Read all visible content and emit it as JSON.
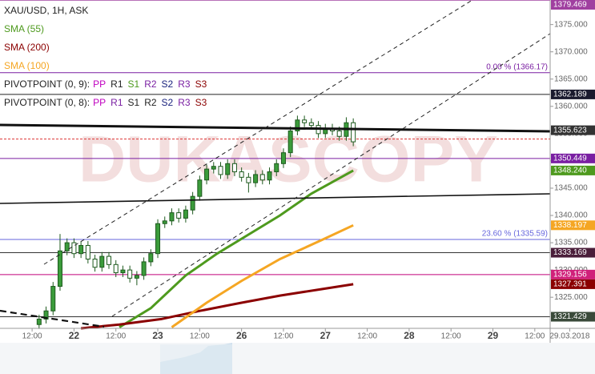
{
  "chart_data": {
    "type": "candlestick",
    "title": "XAU/USD, 1H, ASK",
    "watermark": "DUKASCOPY",
    "xlim": [
      -9.2,
      148.4
    ],
    "ylim": [
      1319.3,
      1379.5
    ],
    "yticks": [
      {
        "value": 1325,
        "label": "1325.000"
      },
      {
        "value": 1330,
        "label": "1330.000"
      },
      {
        "value": 1335,
        "label": "1335.000"
      },
      {
        "value": 1340,
        "label": "1340.000"
      },
      {
        "value": 1345,
        "label": "1345.000"
      },
      {
        "value": 1350,
        "label": "1350.000"
      },
      {
        "value": 1355,
        "label": "1355.000"
      },
      {
        "value": 1360,
        "label": "1360.000"
      },
      {
        "value": 1365,
        "label": "1365.000"
      },
      {
        "value": 1370,
        "label": "1370.000"
      },
      {
        "value": 1375,
        "label": "1375.000"
      }
    ],
    "xticks": [
      {
        "value": 0,
        "label": "12:00"
      },
      {
        "value": 12,
        "label": "22"
      },
      {
        "value": 24,
        "label": "12:00"
      },
      {
        "value": 36,
        "label": "23"
      },
      {
        "value": 48,
        "label": "12:00"
      },
      {
        "value": 60,
        "label": "26"
      },
      {
        "value": 72,
        "label": "12:00"
      },
      {
        "value": 84,
        "label": "27"
      },
      {
        "value": 96,
        "label": "12:00"
      },
      {
        "value": 108,
        "label": "28"
      },
      {
        "value": 120,
        "label": "12:00"
      },
      {
        "value": 132,
        "label": "29"
      },
      {
        "value": 144,
        "label": "12:00"
      },
      {
        "value": 154,
        "label": "29.03.2018"
      }
    ],
    "up_color": "#3b9c3b",
    "down_color": "#ffffff",
    "candles": {
      "x": [
        2,
        4,
        6,
        8,
        10,
        12,
        14,
        16,
        18,
        20,
        22,
        24,
        26,
        28,
        30,
        32,
        34,
        36,
        38,
        40,
        42,
        44,
        46,
        48,
        50,
        52,
        54,
        56,
        58,
        60,
        62,
        64,
        66,
        68,
        70,
        72,
        74,
        76,
        78,
        80,
        82,
        84,
        86,
        88,
        90,
        92
      ],
      "open": [
        1320.0,
        1321.0,
        1322.5,
        1327.0,
        1333.5,
        1335.0,
        1333.0,
        1334.5,
        1332.0,
        1330.5,
        1332.5,
        1331.0,
        1329.5,
        1330.0,
        1328.5,
        1329.0,
        1331.5,
        1333.0,
        1338.5,
        1339.0,
        1340.5,
        1339.5,
        1341.0,
        1343.5,
        1346.5,
        1348.5,
        1349.0,
        1347.5,
        1349.5,
        1348.0,
        1347.0,
        1346.0,
        1347.5,
        1346.5,
        1348.0,
        1349.5,
        1351.5,
        1355.5,
        1357.5,
        1357.0,
        1356.5,
        1355.0,
        1356.0,
        1355.5,
        1354.5,
        1357.0
      ],
      "high": [
        1321.8,
        1323.3,
        1327.8,
        1336.6,
        1335.8,
        1335.8,
        1335.3,
        1335.3,
        1332.8,
        1333.3,
        1333.3,
        1331.8,
        1330.8,
        1330.8,
        1329.8,
        1332.3,
        1333.8,
        1339.3,
        1339.8,
        1341.3,
        1341.3,
        1341.8,
        1344.3,
        1347.3,
        1349.3,
        1349.8,
        1349.8,
        1350.3,
        1350.3,
        1348.8,
        1347.8,
        1348.3,
        1348.3,
        1348.8,
        1350.3,
        1352.3,
        1356.3,
        1358.3,
        1358.3,
        1357.8,
        1357.3,
        1356.8,
        1356.8,
        1356.3,
        1358.0,
        1357.8
      ],
      "low": [
        1319.2,
        1320.2,
        1321.7,
        1326.2,
        1332.7,
        1332.2,
        1332.2,
        1331.2,
        1329.7,
        1329.7,
        1330.2,
        1328.7,
        1328.7,
        1327.7,
        1327.2,
        1328.2,
        1330.7,
        1332.2,
        1337.7,
        1338.2,
        1338.7,
        1338.7,
        1340.2,
        1342.7,
        1345.7,
        1347.7,
        1346.7,
        1346.7,
        1347.2,
        1346.2,
        1344.2,
        1345.2,
        1345.7,
        1345.7,
        1347.2,
        1348.7,
        1350.7,
        1354.7,
        1356.2,
        1355.7,
        1354.2,
        1354.2,
        1354.7,
        1353.7,
        1353.7,
        1352.7
      ],
      "close": [
        1321.0,
        1322.5,
        1327.0,
        1333.5,
        1335.0,
        1333.0,
        1334.5,
        1332.0,
        1330.5,
        1332.5,
        1331.0,
        1329.5,
        1330.0,
        1328.5,
        1329.0,
        1331.5,
        1333.0,
        1338.5,
        1339.0,
        1340.5,
        1339.5,
        1341.0,
        1343.5,
        1346.5,
        1348.5,
        1349.0,
        1347.5,
        1349.5,
        1348.0,
        1347.0,
        1346.0,
        1347.5,
        1346.5,
        1348.0,
        1349.5,
        1351.5,
        1355.5,
        1357.5,
        1357.0,
        1356.5,
        1355.0,
        1356.0,
        1355.5,
        1354.5,
        1357.0,
        1353.5
      ]
    },
    "series": [
      {
        "name": "SMA (55)",
        "color": "#4e9a1e",
        "x": [
          25,
          34,
          44,
          53,
          62,
          71,
          80,
          92
        ],
        "values": [
          1319.5,
          1323,
          1329,
          1333,
          1336.5,
          1340,
          1344,
          1348.24
        ]
      },
      {
        "name": "SMA (200)",
        "color": "#8b0000",
        "x": [
          14,
          25,
          37,
          48,
          60,
          71,
          83,
          92
        ],
        "values": [
          1319.3,
          1320,
          1321,
          1322.5,
          1324,
          1325.3,
          1326.5,
          1327.391
        ]
      },
      {
        "name": "SMA (100)",
        "color": "#f5a623",
        "x": [
          40,
          50,
          60,
          71,
          83,
          92
        ],
        "values": [
          1319.5,
          1324,
          1328,
          1332,
          1335.5,
          1338.197
        ]
      }
    ],
    "pivot_legends": [
      {
        "name": "PIVOTPOINT (0, 9):",
        "items": [
          {
            "label": "PP",
            "color": "#c000c0"
          },
          {
            "label": "R1",
            "color": "#222"
          },
          {
            "label": "S1",
            "color": "#4e9a1e"
          },
          {
            "label": "R2",
            "color": "#7a1fa2"
          },
          {
            "label": "S2",
            "color": "#1a237e"
          },
          {
            "label": "R3",
            "color": "#7a1fa2"
          },
          {
            "label": "S3",
            "color": "#8b0000"
          }
        ]
      },
      {
        "name": "PIVOTPOINT (0, 8):",
        "items": [
          {
            "label": "PP",
            "color": "#c000c0"
          },
          {
            "label": "R1",
            "color": "#7a1fa2"
          },
          {
            "label": "S1",
            "color": "#222"
          },
          {
            "label": "R2",
            "color": "#222"
          },
          {
            "label": "S2",
            "color": "#1a237e"
          },
          {
            "label": "R3",
            "color": "#7a1fa2"
          },
          {
            "label": "S3",
            "color": "#8b0000"
          }
        ]
      }
    ],
    "levels": [
      {
        "value": 1379.469,
        "color": "#a040a0"
      },
      {
        "value": 1366.17,
        "color": "#7a1fa2",
        "label": "0.00 % (1366.17)"
      },
      {
        "value": 1362.189,
        "color": "#222"
      },
      {
        "value": 1354.0,
        "color": "#d33",
        "dashed": true
      },
      {
        "value": 1350.449,
        "color": "#7a1fa2"
      },
      {
        "value": 1335.59,
        "color": "#6666dd",
        "label": "23.60 % (1335.59)"
      },
      {
        "value": 1333.169,
        "color": "#333"
      },
      {
        "value": 1329.156,
        "color": "#c0007a"
      },
      {
        "value": 1321.429,
        "color": "#333"
      }
    ],
    "price_tags": [
      {
        "value": 1379.469,
        "label": "1379.469",
        "color": "#a040a0"
      },
      {
        "value": 1362.189,
        "label": "1362.189",
        "color": "#1a1a2e"
      },
      {
        "value": 1355.623,
        "label": "1355.623",
        "color": "#333"
      },
      {
        "value": 1350.449,
        "label": "1350.449",
        "color": "#7a1fa2"
      },
      {
        "value": 1348.24,
        "label": "1348.240",
        "color": "#4e9a1e"
      },
      {
        "value": 1338.197,
        "label": "1338.197",
        "color": "#f5a623"
      },
      {
        "value": 1333.169,
        "label": "1333.169",
        "color": "#4a1e3a"
      },
      {
        "value": 1329.156,
        "label": "1329.156",
        "color": "#d0207a"
      },
      {
        "value": 1327.391,
        "label": "1327.391",
        "color": "#8b0000"
      },
      {
        "value": 1321.429,
        "label": "1321.429",
        "color": "#3a4a3a"
      }
    ]
  }
}
